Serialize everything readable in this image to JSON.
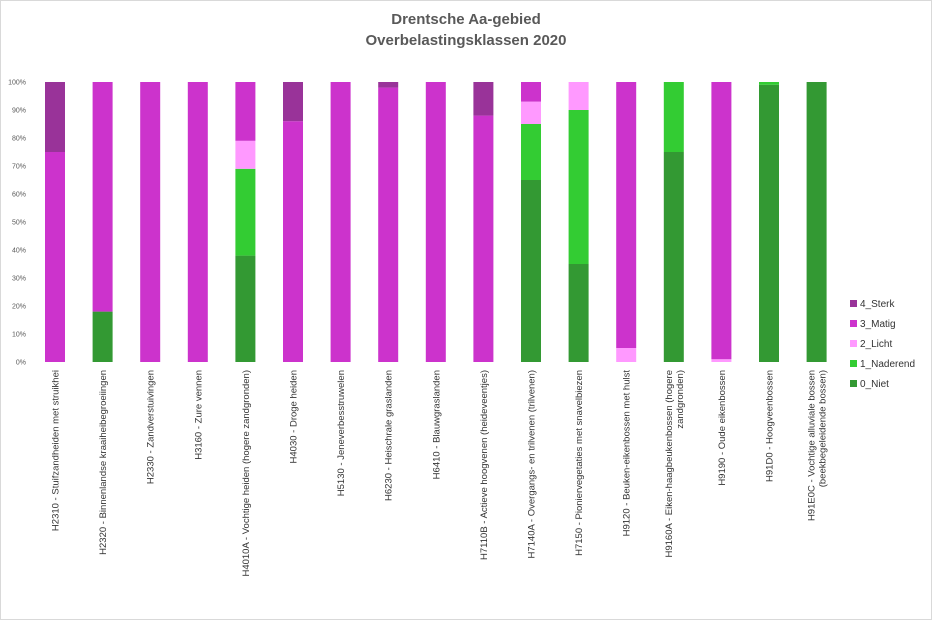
{
  "chart_data": {
    "type": "bar",
    "stacked": true,
    "title_line1": "Drentsche Aa-gebied",
    "title_line2": "Overbelastingsklassen 2020",
    "ylim": [
      0,
      100
    ],
    "yticks": [
      "0%",
      "10%",
      "20%",
      "30%",
      "40%",
      "50%",
      "60%",
      "70%",
      "80%",
      "90%",
      "100%"
    ],
    "grid": false,
    "legend_position": "right",
    "categories": [
      [
        "H2310 - Stuifzandheiden met struikhei"
      ],
      [
        "H2320 - Binnenlandse kraaiheibegroeiingen"
      ],
      [
        "H2330 - Zandverstuivingen"
      ],
      [
        "H3160 - Zure vennen"
      ],
      [
        "H4010A - Vochtige heiden (hogere zandgronden)"
      ],
      [
        "H4030 - Droge heiden"
      ],
      [
        "H5130 - Jeneverbesstruwelen"
      ],
      [
        "H6230 - Heischrale graslanden"
      ],
      [
        "H6410 - Blauwgraslanden"
      ],
      [
        "H7110B - Actieve hoogvenen (heideveentjes)"
      ],
      [
        "H7140A - Overgangs- en trilvenen (trilvenen)"
      ],
      [
        "H7150 - Pioniervegetaties met snavelbiezen"
      ],
      [
        "H9120 - Beuken-eikenbossen met hulst"
      ],
      [
        "H9160A - Eiken-haagbeukenbossen (hogere",
        "zandgronden)"
      ],
      [
        "H9190 - Oude eikenbossen"
      ],
      [
        "H91D0 - Hoogveenbossen"
      ],
      [
        "H91E0C - Vochtige alluviale bossen",
        "(beekbegeleidende bossen)"
      ]
    ],
    "series": [
      {
        "name": "0_Niet",
        "color": "#339933",
        "values": [
          0,
          18,
          0,
          0,
          38,
          0,
          0,
          0,
          0,
          0,
          65,
          35,
          0,
          75,
          0,
          99,
          100
        ]
      },
      {
        "name": "1_Naderend",
        "color": "#33cc33",
        "values": [
          0,
          0,
          0,
          0,
          31,
          0,
          0,
          0,
          0,
          0,
          20,
          55,
          0,
          25,
          0,
          1,
          0
        ]
      },
      {
        "name": "2_Licht",
        "color": "#ff99ff",
        "values": [
          0,
          0,
          0,
          0,
          10,
          0,
          0,
          0,
          0,
          0,
          8,
          10,
          5,
          0,
          1,
          0,
          0
        ]
      },
      {
        "name": "3_Matig",
        "color": "#cc33cc",
        "values": [
          75,
          82,
          100,
          100,
          21,
          86,
          100,
          98,
          100,
          88,
          7,
          0,
          95,
          0,
          99,
          0,
          0
        ]
      },
      {
        "name": "4_Sterk",
        "color": "#993399",
        "values": [
          25,
          0,
          0,
          0,
          0,
          14,
          0,
          2,
          0,
          12,
          0,
          0,
          0,
          0,
          0,
          0,
          0
        ]
      }
    ]
  }
}
